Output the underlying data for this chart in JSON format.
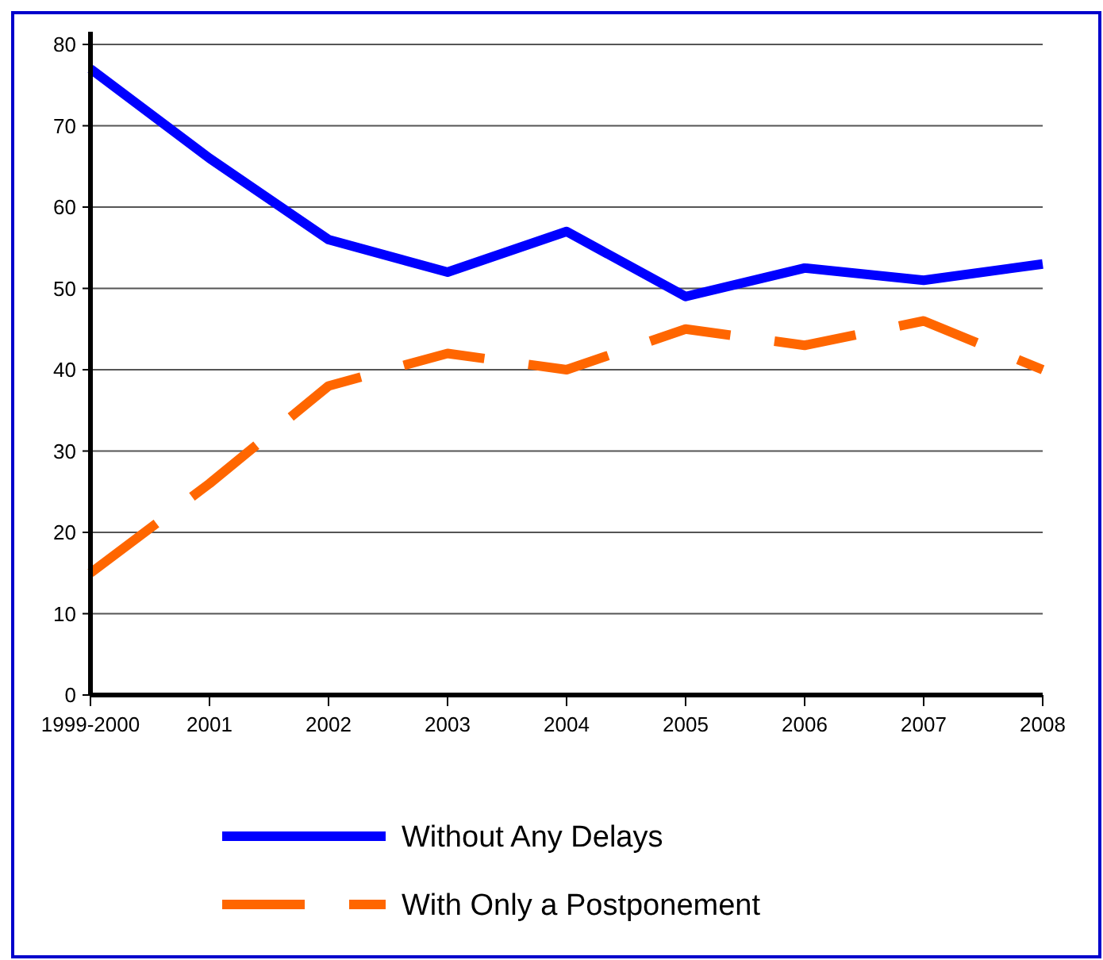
{
  "chart_data": {
    "type": "line",
    "categories": [
      "1999-2000",
      "2001",
      "2002",
      "2003",
      "2004",
      "2005",
      "2006",
      "2007",
      "2008"
    ],
    "series": [
      {
        "name": "Without Any Delays",
        "color": "#0000ff",
        "line_style": "solid",
        "values": [
          77,
          66,
          56,
          52,
          57,
          49,
          52.5,
          51,
          53
        ]
      },
      {
        "name": "With Only a Postponement",
        "color": "#ff6600",
        "line_style": "dashed",
        "values": [
          15,
          26,
          38,
          42,
          40,
          45,
          43,
          46,
          40
        ]
      }
    ],
    "ylim": [
      0,
      80
    ],
    "yticks": [
      0,
      10,
      20,
      30,
      40,
      50,
      60,
      70,
      80
    ],
    "grid": "y",
    "legend": "bottom",
    "marker": "none"
  }
}
